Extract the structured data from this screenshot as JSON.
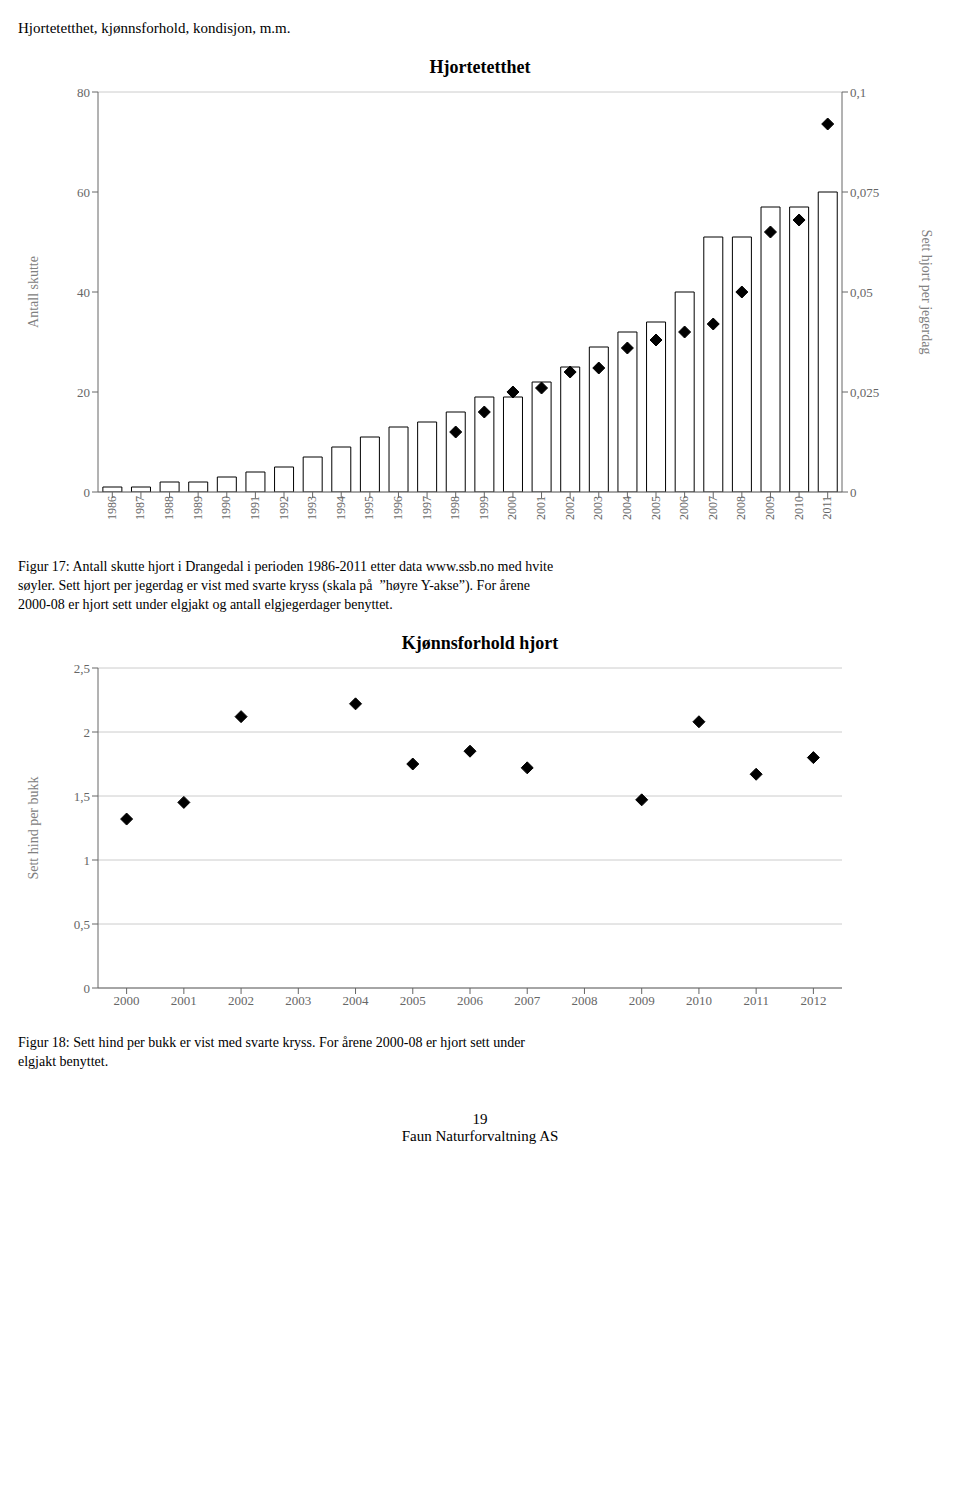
{
  "title": "Hjortetetthet, kjønnsforhold, kondisjon, m.m.",
  "annotations": [
    "19",
    "Faun Naturforvaltning AS"
  ],
  "chart_data": [
    {
      "type": "bar",
      "title": "Hjortetetthet",
      "ylabel": "Antall skutte",
      "y2label": "Sett hjort per jegerdag",
      "categories": [
        "1986",
        "1987",
        "1988",
        "1989",
        "1990",
        "1991",
        "1992",
        "1993",
        "1994",
        "1995",
        "1996",
        "1997",
        "1998",
        "1999",
        "2000",
        "2001",
        "2002",
        "2003",
        "2004",
        "2005",
        "2006",
        "2007",
        "2008",
        "2009",
        "2010",
        "2011"
      ],
      "series": [
        {
          "type": "bar",
          "color": "#ffffff",
          "values": [
            1,
            1,
            2,
            2,
            3,
            4,
            5,
            7,
            9,
            11,
            13,
            14,
            16,
            19,
            19,
            22,
            25,
            29,
            32,
            34,
            40,
            51,
            51,
            57,
            57,
            60
          ]
        },
        {
          "type": "scatter",
          "axis": "y2",
          "marker": "diamond",
          "color": "#000000",
          "values": [
            null,
            null,
            null,
            null,
            null,
            null,
            null,
            null,
            null,
            null,
            null,
            null,
            0.015,
            0.02,
            0.025,
            0.026,
            0.03,
            0.031,
            0.036,
            0.038,
            0.04,
            0.042,
            0.05,
            0.065,
            0.068,
            0.092
          ]
        }
      ],
      "ylim": [
        0,
        80
      ],
      "yticks": [
        0,
        20,
        40,
        60,
        80
      ],
      "y2lim": [
        0,
        0.1
      ],
      "y2ticks": [
        0,
        {
          "value": 0.025,
          "label": "0,025"
        },
        {
          "value": 0.05,
          "label": "0,05"
        },
        {
          "value": 0.075,
          "label": "0,075"
        },
        {
          "value": 0.1,
          "label": "0,1"
        }
      ],
      "grid": true,
      "annotations": [
        "Figur 17: Antall skutte hjort i Drangedal i perioden 1986-2011 etter data www.ssb.no med hvite\nsøyler. Sett hjort per jegerdag er vist med svarte kryss (skala på  ”høyre Y-akse”). For årene\n2000-08 er hjort sett under elgjakt og antall elgjegerdager benyttet."
      ]
    },
    {
      "type": "scatter",
      "title": "Kjønnsforhold hjort",
      "ylabel": "Sett hind per bukk",
      "x": [
        2000,
        2001,
        2002,
        2004,
        2005,
        2006,
        2007,
        2009,
        2010,
        2011,
        2012
      ],
      "values": [
        1.32,
        1.45,
        2.12,
        2.22,
        1.75,
        1.85,
        1.72,
        1.47,
        2.08,
        1.67,
        1.8
      ],
      "marker": "diamond",
      "color": "#000000",
      "xlim": [
        1999.5,
        2012.5
      ],
      "xticks": [
        2000,
        2001,
        2002,
        2003,
        2004,
        2005,
        2006,
        2007,
        2008,
        2009,
        2010,
        2011,
        2012
      ],
      "ylim": [
        0,
        2.5
      ],
      "yticks": [
        0,
        {
          "value": 0.5,
          "label": "0,5"
        },
        1,
        {
          "value": 1.5,
          "label": "1,5"
        },
        2,
        {
          "value": 2.5,
          "label": "2,5"
        }
      ],
      "grid": true,
      "annotations": [
        "Figur 18: Sett hind per bukk er vist med svarte kryss. For årene 2000-08 er hjort sett under\nelgjakt benyttet."
      ]
    }
  ]
}
